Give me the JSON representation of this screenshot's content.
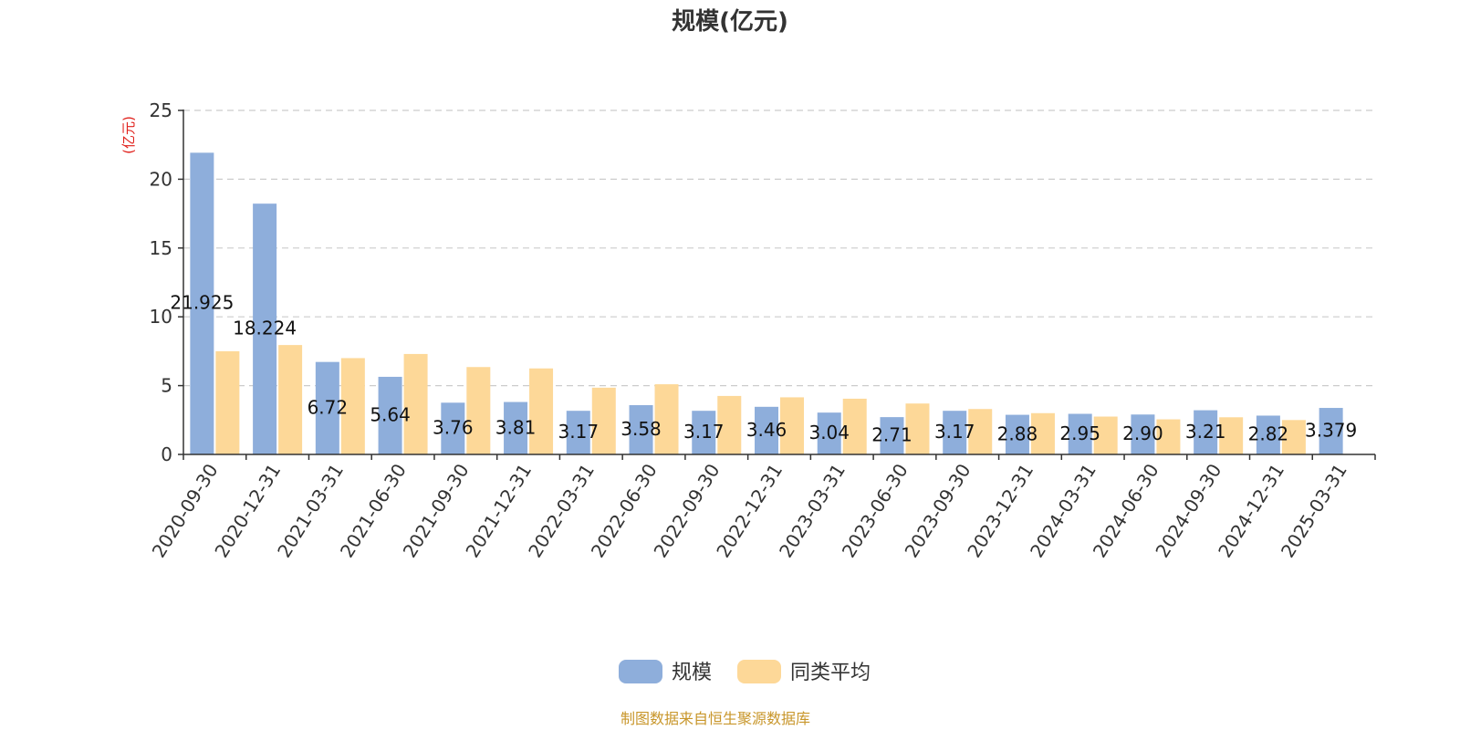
{
  "chart_data": {
    "type": "bar",
    "title": "规模(亿元)",
    "ylabel": "(亿元)",
    "xlabel": "",
    "ylim": [
      0,
      25
    ],
    "yticks": [
      0,
      5,
      10,
      15,
      20,
      25
    ],
    "grid": "horizontal-dashed",
    "legend_position": "bottom-center",
    "categories": [
      "2020-09-30",
      "2020-12-31",
      "2021-03-31",
      "2021-06-30",
      "2021-09-30",
      "2021-12-31",
      "2022-03-31",
      "2022-06-30",
      "2022-09-30",
      "2022-12-31",
      "2023-03-31",
      "2023-06-30",
      "2023-09-30",
      "2023-12-31",
      "2024-03-31",
      "2024-06-30",
      "2024-09-30",
      "2024-12-31",
      "2025-03-31"
    ],
    "series": [
      {
        "name": "规模",
        "color": "#8eaedb",
        "values": [
          21.925,
          18.224,
          6.72,
          5.64,
          3.76,
          3.81,
          3.17,
          3.58,
          3.17,
          3.46,
          3.04,
          2.71,
          3.17,
          2.88,
          2.95,
          2.9,
          3.21,
          2.82,
          3.379
        ],
        "labels": [
          "21.925",
          "18.224",
          "6.72",
          "5.64",
          "3.76",
          "3.81",
          "3.17",
          "3.58",
          "3.17",
          "3.46",
          "3.04",
          "2.71",
          "3.17",
          "2.88",
          "2.95",
          "2.90",
          "3.21",
          "2.82",
          "3.379"
        ]
      },
      {
        "name": "同类平均",
        "color": "#fdd898",
        "values": [
          7.5,
          7.95,
          7.0,
          7.3,
          6.35,
          6.25,
          4.85,
          5.1,
          4.25,
          4.15,
          4.05,
          3.7,
          3.3,
          3.0,
          2.75,
          2.55,
          2.7,
          2.5,
          null
        ]
      }
    ]
  },
  "source_note": "制图数据来自恒生聚源数据库"
}
